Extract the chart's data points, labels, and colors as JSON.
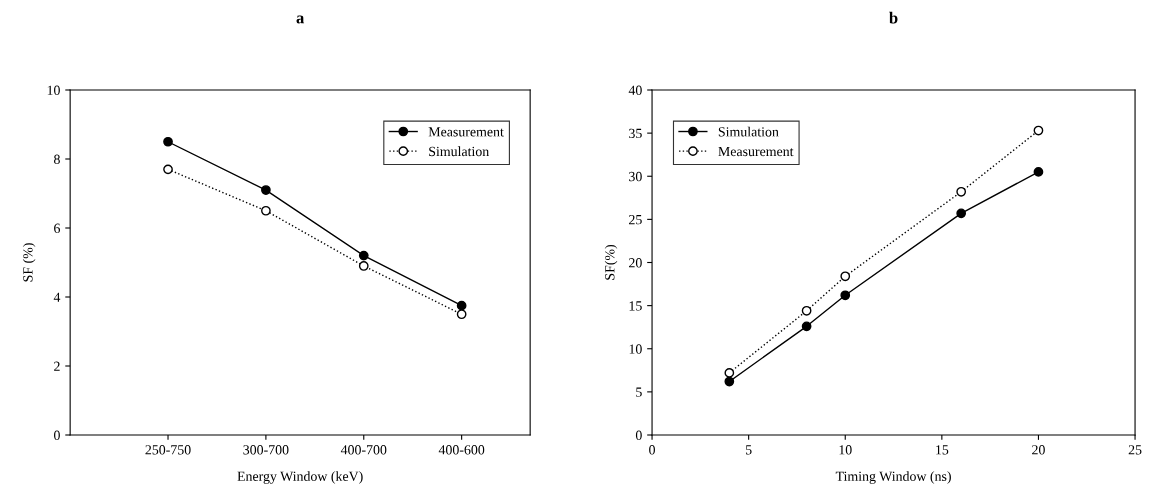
{
  "chart_data": [
    {
      "type": "line",
      "title": "a",
      "xlabel": "Energy Window (keV)",
      "ylabel": "SF (%)",
      "categories": [
        "250-750",
        "300-700",
        "400-700",
        "400-600"
      ],
      "series": [
        {
          "name": "Measurement",
          "color": "#000000",
          "line_style": "solid",
          "values": [
            8.5,
            7.1,
            5.2,
            3.75
          ]
        },
        {
          "name": "Simulation",
          "color": "#000000",
          "line_style": "dotted",
          "values": [
            7.7,
            6.5,
            4.9,
            3.5
          ]
        }
      ],
      "ylim": [
        0,
        10
      ],
      "yticks": [
        0,
        2,
        4,
        6,
        8,
        10
      ],
      "marker": "circle",
      "legend": "top right",
      "grid": false
    },
    {
      "type": "line",
      "title": "b",
      "xlabel": "Timing Window (ns)",
      "ylabel": "SF(%)",
      "x": [
        4,
        8,
        10,
        16,
        20
      ],
      "series": [
        {
          "name": "Simulation",
          "color": "#000000",
          "line_style": "solid",
          "values": [
            6.2,
            12.6,
            16.2,
            25.7,
            30.5
          ]
        },
        {
          "name": "Measurement",
          "color": "#000000",
          "line_style": "dotted",
          "values": [
            7.2,
            14.4,
            18.4,
            28.2,
            35.3
          ]
        }
      ],
      "xlim": [
        0,
        25
      ],
      "xticks": [
        0,
        5,
        10,
        15,
        20,
        25
      ],
      "ylim": [
        0,
        40
      ],
      "yticks": [
        0,
        5,
        10,
        15,
        20,
        25,
        30,
        35,
        40
      ],
      "marker": "circle",
      "legend": "top left",
      "grid": false
    }
  ]
}
